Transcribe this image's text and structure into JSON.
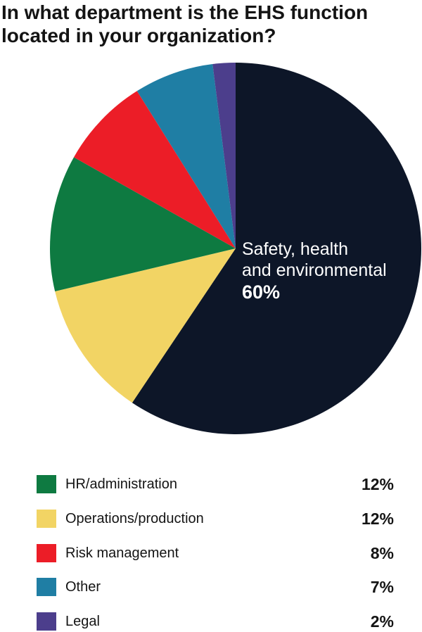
{
  "chart_data": {
    "type": "pie",
    "title": "In what department is the EHS function located in your organization?",
    "title_lines": [
      "In what department is the EHS function",
      "located in your organization?"
    ],
    "slices": [
      {
        "label": "Safety, health and environmental",
        "label_lines": [
          "Safety, health",
          "and environmental"
        ],
        "value": 60,
        "value_label": "60%",
        "color": "#0d1628"
      },
      {
        "label": "Operations/production",
        "value": 12,
        "value_label": "12%",
        "color": "#f2d464"
      },
      {
        "label": "HR/administration",
        "value": 12,
        "value_label": "12%",
        "color": "#0e7a41"
      },
      {
        "label": "Risk management",
        "value": 8,
        "value_label": "8%",
        "color": "#ec1d27"
      },
      {
        "label": "Other",
        "value": 7,
        "value_label": "7%",
        "color": "#1f7ea4"
      },
      {
        "label": "Legal",
        "value": 2,
        "value_label": "2%",
        "color": "#4c3e8c"
      }
    ],
    "legend": [
      {
        "label": "HR/administration",
        "value_label": "12%",
        "color": "#0e7a41"
      },
      {
        "label": "Operations/production",
        "value_label": "12%",
        "color": "#f2d464"
      },
      {
        "label": "Risk management",
        "value_label": "8%",
        "color": "#ec1d27"
      },
      {
        "label": "Other",
        "value_label": "7%",
        "color": "#1f7ea4"
      },
      {
        "label": "Legal",
        "value_label": "2%",
        "color": "#4c3e8c"
      }
    ],
    "legend_placement": "bottom"
  }
}
